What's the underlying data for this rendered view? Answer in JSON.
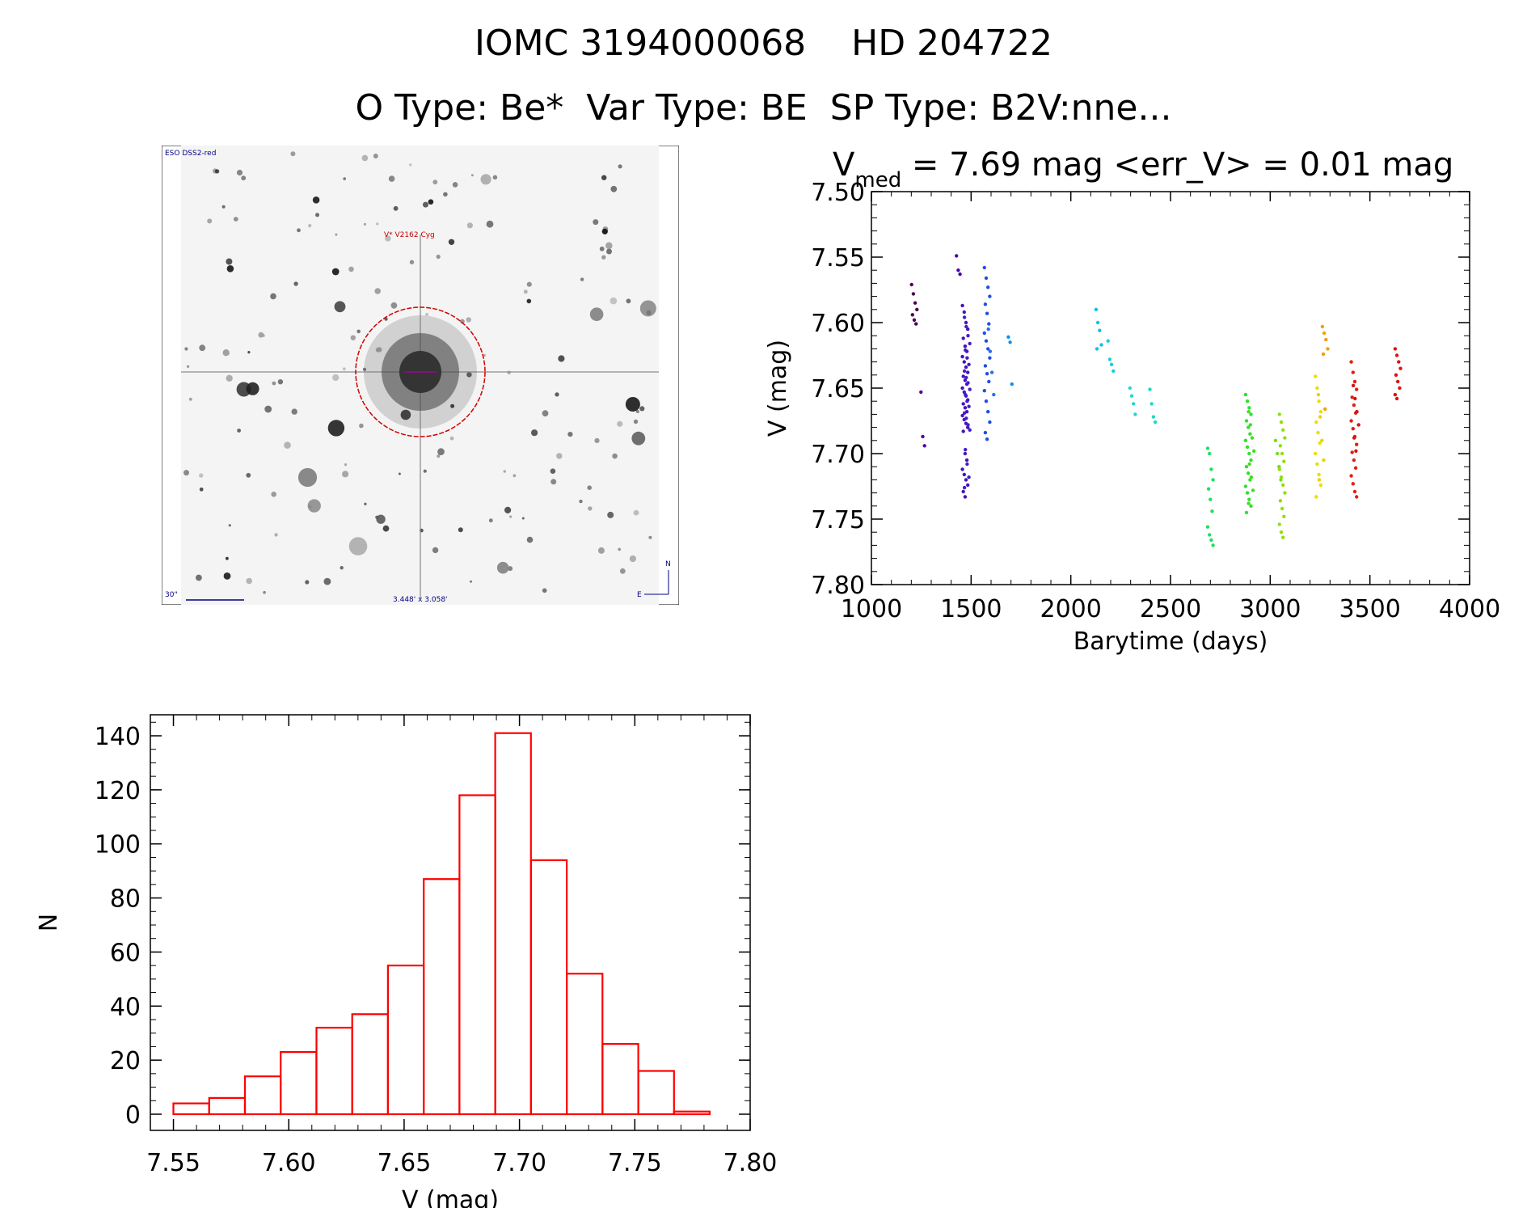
{
  "header": {
    "title": "IOMC 3194000068    HD 204722",
    "subtitle": "O Type: Be*  Var Type: BE  SP Type: B2V:nne..."
  },
  "sky_image": {
    "survey_label": "ESO DSS2-red",
    "target_label": "V* V2162 Cyg",
    "scale_label": "30\"",
    "fov_label": "3.448' x 3.058'",
    "north_label": "N",
    "east_label": "E"
  },
  "chart_data": [
    {
      "type": "scatter",
      "title": "V_med = 7.69 mag <err_V> = 0.01 mag",
      "title_parts": {
        "v": "V",
        "sub": "med",
        "rest": " = 7.69 mag <err_V> = 0.01 mag"
      },
      "xlabel": "Barytime (days)",
      "ylabel": "V (mag)",
      "xlim": [
        1000,
        4000
      ],
      "ylim": [
        7.8,
        7.5
      ],
      "y_inverted": true,
      "xticks": [
        "1000",
        "1500",
        "2000",
        "2500",
        "3000",
        "3500",
        "4000"
      ],
      "yticks": [
        "7.50",
        "7.55",
        "7.60",
        "7.65",
        "7.70",
        "7.75",
        "7.80"
      ],
      "color_by_time": true,
      "groups": [
        {
          "x": 1215,
          "color": "#4b0050",
          "y": [
            7.571,
            7.578,
            7.585,
            7.59,
            7.594,
            7.598,
            7.601
          ]
        },
        {
          "x": 1262,
          "color": "#5a00a0",
          "y": [
            7.653,
            7.687,
            7.694
          ]
        },
        {
          "x": 1440,
          "color": "#5000b4",
          "y": [
            7.549,
            7.56,
            7.563
          ]
        },
        {
          "x": 1470,
          "color": "#4a10c0",
          "y": [
            7.587,
            7.592,
            7.6,
            7.605,
            7.612,
            7.618,
            7.622,
            7.626,
            7.63,
            7.634,
            7.638,
            7.641,
            7.644,
            7.647,
            7.65,
            7.653,
            7.656,
            7.659,
            7.662,
            7.665,
            7.668,
            7.671,
            7.674,
            7.677,
            7.68,
            7.683,
            7.7,
            7.705,
            7.712,
            7.716,
            7.72,
            7.724,
            7.729,
            7.733
          ]
        },
        {
          "x": 1480,
          "color": "#4020c8",
          "y": [
            7.596,
            7.603,
            7.61,
            7.616,
            7.621,
            7.627,
            7.632,
            7.637,
            7.642,
            7.646,
            7.651,
            7.655,
            7.66,
            7.664,
            7.669,
            7.673,
            7.678,
            7.682,
            7.697,
            7.708,
            7.718,
            7.726
          ]
        },
        {
          "x": 1580,
          "color": "#2050e0",
          "y": [
            7.558,
            7.566,
            7.573,
            7.58,
            7.586,
            7.593,
            7.601,
            7.608,
            7.614,
            7.62,
            7.627,
            7.633,
            7.639,
            7.645,
            7.652,
            7.66,
            7.668,
            7.676,
            7.684,
            7.689
          ]
        },
        {
          "x": 1600,
          "color": "#2870f0",
          "y": [
            7.605,
            7.622,
            7.638,
            7.655
          ]
        },
        {
          "x": 1700,
          "color": "#1090f0",
          "y": [
            7.611,
            7.615,
            7.647
          ]
        },
        {
          "x": 2140,
          "color": "#10c0e8",
          "y": [
            7.59,
            7.6,
            7.606,
            7.617,
            7.62
          ]
        },
        {
          "x": 2200,
          "color": "#10d0e0",
          "y": [
            7.614,
            7.628,
            7.632,
            7.637
          ]
        },
        {
          "x": 2310,
          "color": "#20d8d0",
          "y": [
            7.65,
            7.656,
            7.662,
            7.67
          ]
        },
        {
          "x": 2410,
          "color": "#20d8c0",
          "y": [
            7.651,
            7.662,
            7.672,
            7.676
          ]
        },
        {
          "x": 2700,
          "color": "#20e060",
          "y": [
            7.696,
            7.7,
            7.712,
            7.72,
            7.727,
            7.735,
            7.744,
            7.756,
            7.762,
            7.766,
            7.77
          ]
        },
        {
          "x": 2890,
          "color": "#30e030",
          "y": [
            7.655,
            7.66,
            7.665,
            7.67,
            7.675,
            7.68,
            7.685,
            7.69,
            7.695,
            7.7,
            7.705,
            7.71,
            7.715,
            7.72,
            7.725,
            7.73,
            7.735,
            7.74,
            7.745
          ]
        },
        {
          "x": 2905,
          "color": "#40e020",
          "y": [
            7.668,
            7.678,
            7.688,
            7.698,
            7.708,
            7.718,
            7.728,
            7.738
          ]
        },
        {
          "x": 3040,
          "color": "#70e020",
          "y": [
            7.69,
            7.7,
            7.71,
            7.72
          ]
        },
        {
          "x": 3060,
          "color": "#90e010",
          "y": [
            7.67,
            7.676,
            7.682,
            7.688,
            7.694,
            7.7,
            7.706,
            7.712,
            7.718,
            7.724,
            7.73,
            7.736,
            7.742,
            7.748,
            7.754,
            7.76,
            7.764
          ]
        },
        {
          "x": 3240,
          "color": "#e8e000",
          "y": [
            7.641,
            7.65,
            7.66,
            7.668,
            7.676,
            7.684,
            7.692,
            7.7,
            7.708,
            7.716,
            7.724,
            7.733
          ]
        },
        {
          "x": 3255,
          "color": "#f0d000",
          "y": [
            7.655,
            7.672,
            7.69,
            7.705,
            7.72
          ]
        },
        {
          "x": 3275,
          "color": "#f0a000",
          "y": [
            7.603,
            7.608,
            7.613,
            7.62,
            7.624,
            7.666
          ]
        },
        {
          "x": 3420,
          "color": "#e02010",
          "y": [
            7.63,
            7.638,
            7.645,
            7.651,
            7.657,
            7.663,
            7.669,
            7.675,
            7.681,
            7.687,
            7.693,
            7.699,
            7.705,
            7.711,
            7.717,
            7.723,
            7.729,
            7.733
          ]
        },
        {
          "x": 3430,
          "color": "#d81010",
          "y": [
            7.648,
            7.658,
            7.668,
            7.678,
            7.688,
            7.698
          ]
        },
        {
          "x": 3640,
          "color": "#e01010",
          "y": [
            7.62,
            7.625,
            7.63,
            7.635,
            7.64,
            7.645,
            7.65,
            7.655,
            7.658
          ]
        }
      ]
    },
    {
      "type": "bar",
      "xlabel": "V (mag)",
      "ylabel": "N",
      "xlim": [
        7.54,
        7.8
      ],
      "ylim": [
        0,
        150
      ],
      "xticks": [
        "7.55",
        "7.60",
        "7.65",
        "7.70",
        "7.75",
        "7.80"
      ],
      "yticks": [
        "0",
        "20",
        "40",
        "60",
        "80",
        "100",
        "120",
        "140"
      ],
      "color": "#ff0000",
      "bin_start": 7.55,
      "bin_width": 0.0155,
      "values": [
        4,
        6,
        14,
        23,
        32,
        37,
        55,
        87,
        118,
        141,
        94,
        52,
        26,
        16,
        1
      ]
    }
  ]
}
